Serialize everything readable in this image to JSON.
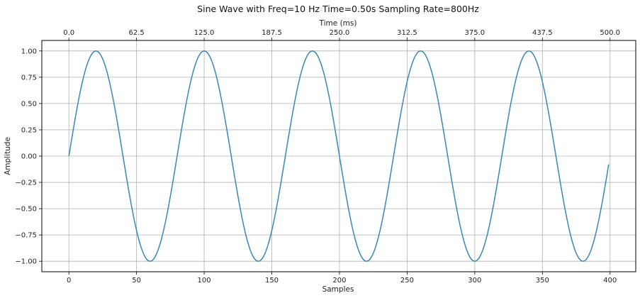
{
  "chart_data": {
    "type": "line",
    "title": "Sine Wave with Freq=10 Hz Time=0.50s Sampling Rate=800Hz",
    "xlabel": "Samples",
    "ylabel": "Amplitude",
    "top_xlabel": "Time (ms)",
    "frequency_hz": 10,
    "sampling_rate_hz": 800,
    "n_samples": 400,
    "xlim": [
      -20,
      419
    ],
    "ylim": [
      -1.1,
      1.1
    ],
    "x_ticks": [
      0,
      50,
      100,
      150,
      200,
      250,
      300,
      350,
      400
    ],
    "x_tick_labels": [
      "0",
      "50",
      "100",
      "150",
      "200",
      "250",
      "300",
      "350",
      "400"
    ],
    "y_ticks": [
      1.0,
      0.75,
      0.5,
      0.25,
      0.0,
      -0.25,
      -0.5,
      -0.75,
      -1.0
    ],
    "y_tick_labels": [
      "1.00",
      "0.75",
      "0.50",
      "0.25",
      "0.00",
      "−0.25",
      "−0.50",
      "−0.75",
      "−1.00"
    ],
    "top_x_ticks": [
      0,
      50,
      100,
      150,
      200,
      250,
      300,
      350,
      400
    ],
    "top_x_tick_labels": [
      "0.0",
      "62.5",
      "125.0",
      "187.5",
      "250.0",
      "312.5",
      "375.0",
      "437.5",
      "500.0"
    ],
    "grid": true,
    "legend": "none",
    "line_color": "#3a86b4",
    "series": [
      {
        "function": "sin(2*pi*10*n/800)",
        "x_start": 0,
        "x_end": 399
      }
    ]
  }
}
